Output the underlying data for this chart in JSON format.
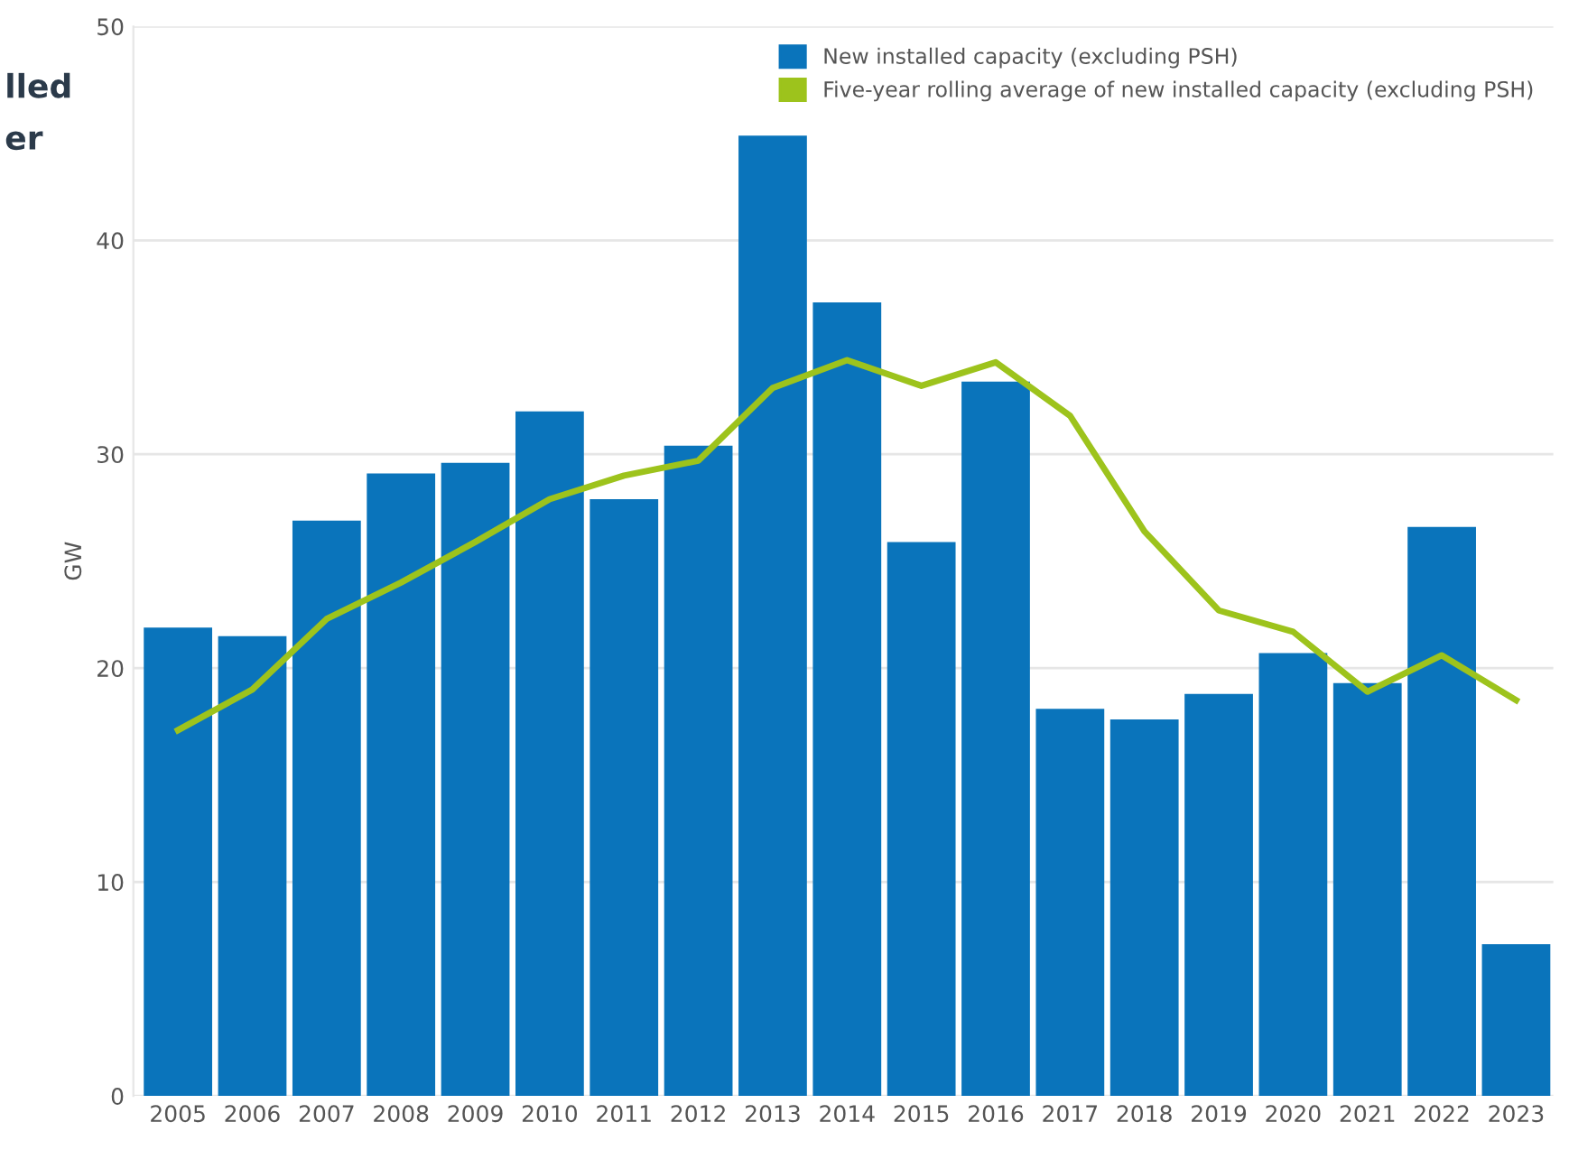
{
  "chart_data": {
    "type": "bar",
    "ylabel": "GW",
    "annotations": [
      "lled",
      "er"
    ],
    "categories": [
      "2005",
      "2006",
      "2007",
      "2008",
      "2009",
      "2010",
      "2011",
      "2012",
      "2013",
      "2014",
      "2015",
      "2016",
      "2017",
      "2018",
      "2019",
      "2020",
      "2021",
      "2022",
      "2023"
    ],
    "series": [
      {
        "name": "New installed capacity (excluding PSH)",
        "color": "#0a74bb",
        "values": [
          21.9,
          21.5,
          26.9,
          29.1,
          29.6,
          32.0,
          27.9,
          30.4,
          44.9,
          37.1,
          25.9,
          33.4,
          18.1,
          17.6,
          18.8,
          20.7,
          19.3,
          26.6,
          7.1
        ]
      },
      {
        "name": "Five-year rolling average of new installed capacity (excluding PSH)",
        "type": "line",
        "color": "#9dc31c",
        "values": [
          17.1,
          19.0,
          22.3,
          24.0,
          25.9,
          27.9,
          29.0,
          29.7,
          33.1,
          34.4,
          33.2,
          34.3,
          31.8,
          26.4,
          22.7,
          21.7,
          18.9,
          20.6,
          18.5
        ]
      }
    ],
    "ylim": [
      0,
      50
    ],
    "yticks": [
      0,
      10,
      20,
      30,
      40,
      50
    ],
    "grid": "y",
    "legend": "top right",
    "marker": "none",
    "line_style": "solid"
  }
}
